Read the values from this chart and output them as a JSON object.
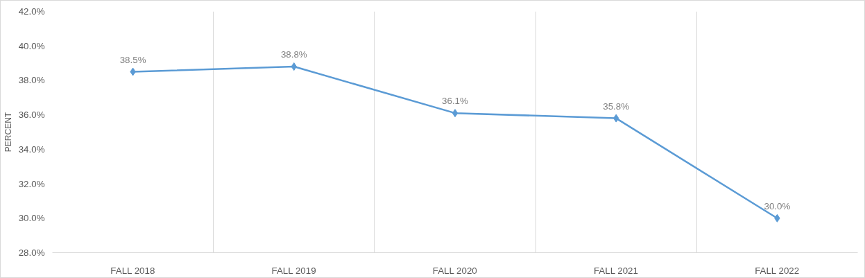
{
  "chart_data": {
    "type": "line",
    "ylabel": "PERCENT",
    "categories": [
      "FALL 2018",
      "FALL 2019",
      "FALL 2020",
      "FALL 2021",
      "FALL 2022"
    ],
    "series": [
      {
        "color": "#5b9bd5",
        "values": [
          38.5,
          38.8,
          36.1,
          35.8,
          30.0
        ],
        "value_labels": [
          "38.5%",
          "38.8%",
          "36.1%",
          "35.8%",
          "30.0%"
        ]
      }
    ],
    "ylim": [
      28,
      42
    ],
    "yticks": [
      {
        "value": 28,
        "label": "28.0%"
      },
      {
        "value": 30,
        "label": "30.0%"
      },
      {
        "value": 32,
        "label": "32.0%"
      },
      {
        "value": 34,
        "label": "34.0%"
      },
      {
        "value": 36,
        "label": "36.0%"
      },
      {
        "value": 38,
        "label": "38.0%"
      },
      {
        "value": 40,
        "label": "40.0%"
      },
      {
        "value": 42,
        "label": "42.0%"
      }
    ],
    "grid": "x",
    "marker": "diamond",
    "line_style": "solid"
  }
}
